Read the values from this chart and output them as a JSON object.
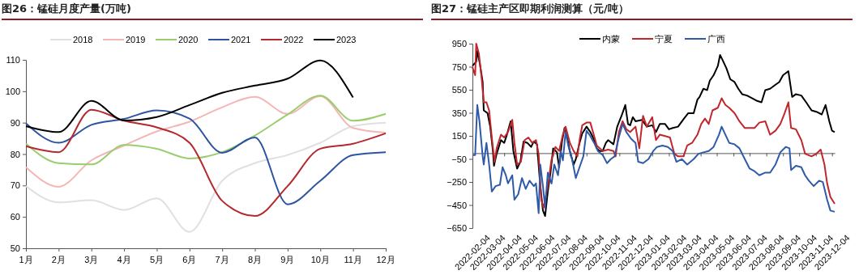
{
  "chart_data": [
    {
      "type": "line",
      "title": "图26：锰硅月度产量(万吨)",
      "categories": [
        "1月",
        "2月",
        "3月",
        "4月",
        "5月",
        "6月",
        "7月",
        "8月",
        "9月",
        "10月",
        "11月",
        "12月"
      ],
      "ylim": [
        50,
        110
      ],
      "yticks": [
        50,
        60,
        70,
        80,
        90,
        100,
        110
      ],
      "legend": "top",
      "series": [
        {
          "name": "2018",
          "color": "#e0e0e0",
          "values": [
            69.8,
            64.6,
            65.3,
            62.2,
            65.9,
            55.2,
            71.5,
            77.1,
            79.7,
            83.6,
            88.9,
            90.0
          ]
        },
        {
          "name": "2019",
          "color": "#f4b6b6",
          "values": [
            75.8,
            69.6,
            78.0,
            82.7,
            87.2,
            90.3,
            94.9,
            98.2,
            92.8,
            98.4,
            88.3,
            86.8
          ]
        },
        {
          "name": "2020",
          "color": "#9acd6e",
          "values": [
            83.3,
            77.1,
            76.7,
            82.9,
            81.7,
            78.6,
            80.6,
            85.9,
            92.6,
            98.6,
            90.6,
            92.8
          ]
        },
        {
          "name": "2021",
          "color": "#2e54a0",
          "values": [
            89.8,
            83.6,
            89.3,
            91.2,
            93.9,
            91.3,
            80.4,
            85.3,
            64.0,
            71.5,
            79.7,
            80.6
          ]
        },
        {
          "name": "2022",
          "color": "#b5282e",
          "values": [
            82.5,
            80.6,
            94.1,
            90.6,
            88.5,
            83.6,
            65.1,
            60.3,
            69.8,
            81.7,
            83.3,
            86.6
          ]
        },
        {
          "name": "2023",
          "color": "#000000",
          "values": [
            88.9,
            87.0,
            96.9,
            90.7,
            91.8,
            95.6,
            99.5,
            101.8,
            104.0,
            109.8,
            98.0,
            null
          ]
        }
      ]
    },
    {
      "type": "line",
      "title": "图27：锰硅主产区即期利润测算（元/吨）",
      "xlim": [
        "2022-02-04",
        "2023-12-09"
      ],
      "xticks": [
        "2022-02-04",
        "2022-03-04",
        "2022-04-04",
        "2022-05-04",
        "2022-06-04",
        "2022-07-04",
        "2022-08-04",
        "2022-09-04",
        "2022-10-04",
        "2022-11-04",
        "2022-12-04",
        "2023-01-04",
        "2023-02-04",
        "2023-03-04",
        "2023-04-04",
        "2023-05-04",
        "2023-06-04",
        "2023-07-04",
        "2023-08-04",
        "2023-09-04",
        "2023-10-04",
        "2023-11-04",
        "2023-12-04"
      ],
      "ylim": [
        -650,
        950
      ],
      "yticks": [
        -650,
        -450,
        -250,
        -50,
        150,
        350,
        550,
        750,
        950
      ],
      "legend": "top right",
      "series": [
        {
          "name": "内蒙",
          "color": "#000000",
          "x": [
            "2022-02-04",
            "2022-02-11",
            "2022-02-13",
            "2022-02-18",
            "2022-02-23",
            "2022-02-25",
            "2022-03-04",
            "2022-03-09",
            "2022-03-14",
            "2022-03-16",
            "2022-03-21",
            "2022-03-29",
            "2022-04-04",
            "2022-04-09",
            "2022-04-16",
            "2022-04-21",
            "2022-04-28",
            "2022-05-04",
            "2022-05-10",
            "2022-05-17",
            "2022-05-24",
            "2022-05-29",
            "2022-06-04",
            "2022-06-10",
            "2022-06-15",
            "2022-06-19",
            "2022-06-24",
            "2022-06-29",
            "2022-07-04",
            "2022-07-11",
            "2022-07-15",
            "2022-07-20",
            "2022-07-25",
            "2022-07-30",
            "2022-08-04",
            "2022-08-11",
            "2022-08-15",
            "2022-08-22",
            "2022-08-27",
            "2022-09-04",
            "2022-09-11",
            "2022-09-16",
            "2022-09-23",
            "2022-09-28",
            "2022-10-04",
            "2022-10-10",
            "2022-10-14",
            "2022-10-24",
            "2022-10-31",
            "2022-11-08",
            "2022-11-15",
            "2022-11-20",
            "2022-11-24",
            "2022-11-29",
            "2022-12-04",
            "2022-12-16",
            "2022-12-25",
            "2023-01-04",
            "2023-01-11",
            "2023-01-18",
            "2023-01-28",
            "2023-02-04",
            "2023-02-11",
            "2023-02-21",
            "2023-03-04",
            "2023-03-12",
            "2023-03-22",
            "2023-03-29",
            "2023-04-02",
            "2023-04-09",
            "2023-04-16",
            "2023-04-21",
            "2023-04-28",
            "2023-05-06",
            "2023-05-10",
            "2023-05-15",
            "2023-05-22",
            "2023-05-29",
            "2023-06-06",
            "2023-06-13",
            "2023-06-20",
            "2023-06-29",
            "2023-07-09",
            "2023-07-18",
            "2023-07-26",
            "2023-08-02",
            "2023-08-11",
            "2023-08-21",
            "2023-08-28",
            "2023-09-04",
            "2023-09-14",
            "2023-09-21",
            "2023-09-28",
            "2023-10-08",
            "2023-10-17",
            "2023-10-27",
            "2023-11-05",
            "2023-11-15",
            "2023-11-22",
            "2023-11-29",
            "2023-12-04",
            "2023-12-09"
          ],
          "values": [
            758,
            793,
            887,
            770,
            617,
            371,
            347,
            230,
            19,
            -110,
            -5,
            113,
            89,
            160,
            277,
            19,
            -134,
            -75,
            101,
            89,
            54,
            101,
            77,
            -286,
            -498,
            -545,
            -333,
            -169,
            42,
            7,
            -122,
            89,
            218,
            136,
            19,
            -99,
            -52,
            89,
            171,
            230,
            183,
            136,
            42,
            19,
            19,
            89,
            113,
            77,
            230,
            324,
            418,
            253,
            242,
            312,
            277,
            289,
            230,
            242,
            183,
            253,
            253,
            207,
            218,
            230,
            300,
            347,
            347,
            465,
            488,
            559,
            547,
            629,
            676,
            758,
            852,
            805,
            735,
            641,
            617,
            559,
            512,
            500,
            476,
            453,
            441,
            547,
            559,
            594,
            617,
            676,
            711,
            488,
            512,
            500,
            441,
            371,
            359,
            336,
            418,
            277,
            195,
            183
          ]
        },
        {
          "name": "宁夏",
          "color": "#c0272d",
          "x": [
            "2022-02-04",
            "2022-02-09",
            "2022-02-11",
            "2022-02-16",
            "2022-02-21",
            "2022-02-25",
            "2022-03-02",
            "2022-03-07",
            "2022-03-12",
            "2022-03-17",
            "2022-03-21",
            "2022-03-29",
            "2022-04-04",
            "2022-04-11",
            "2022-04-19",
            "2022-04-23",
            "2022-04-28",
            "2022-05-05",
            "2022-05-12",
            "2022-05-19",
            "2022-05-26",
            "2022-06-02",
            "2022-06-07",
            "2022-06-12",
            "2022-06-16",
            "2022-06-24",
            "2022-07-01",
            "2022-07-08",
            "2022-07-15",
            "2022-07-22",
            "2022-07-27",
            "2022-08-04",
            "2022-08-11",
            "2022-08-18",
            "2022-08-22",
            "2022-08-27",
            "2022-09-04",
            "2022-09-11",
            "2022-09-16",
            "2022-09-23",
            "2022-10-04",
            "2022-10-14",
            "2022-10-24",
            "2022-10-28",
            "2022-11-03",
            "2022-11-10",
            "2022-11-17",
            "2022-11-24",
            "2022-12-04",
            "2022-12-11",
            "2022-12-18",
            "2022-12-25",
            "2023-01-04",
            "2023-01-11",
            "2023-01-18",
            "2023-01-28",
            "2023-02-06",
            "2023-02-14",
            "2023-02-21",
            "2023-03-03",
            "2023-03-10",
            "2023-03-19",
            "2023-03-29",
            "2023-04-05",
            "2023-04-12",
            "2023-04-19",
            "2023-04-26",
            "2023-05-06",
            "2023-05-13",
            "2023-05-20",
            "2023-05-27",
            "2023-06-06",
            "2023-06-15",
            "2023-06-25",
            "2023-07-04",
            "2023-07-13",
            "2023-07-22",
            "2023-08-02",
            "2023-08-11",
            "2023-08-21",
            "2023-08-30",
            "2023-09-07",
            "2023-09-14",
            "2023-09-19",
            "2023-09-28",
            "2023-10-08",
            "2023-10-15",
            "2023-10-27",
            "2023-11-05",
            "2023-11-13",
            "2023-11-20",
            "2023-11-25",
            "2023-12-01",
            "2023-12-09"
          ],
          "values": [
            746,
            676,
            950,
            864,
            652,
            441,
            441,
            371,
            136,
            -75,
            42,
            160,
            136,
            183,
            289,
            89,
            -99,
            -75,
            113,
            136,
            89,
            113,
            -5,
            -404,
            -474,
            -286,
            -52,
            54,
            19,
            160,
            230,
            89,
            19,
            -28,
            113,
            242,
            265,
            265,
            183,
            66,
            19,
            31,
            19,
            -28,
            183,
            277,
            207,
            183,
            230,
            42,
            324,
            230,
            312,
            113,
            160,
            148,
            136,
            -5,
            -28,
            -28,
            66,
            89,
            160,
            253,
            300,
            253,
            371,
            394,
            476,
            418,
            394,
            347,
            277,
            218,
            218,
            218,
            265,
            277,
            160,
            195,
            253,
            347,
            441,
            218,
            207,
            113,
            -5,
            -28,
            -5,
            31,
            -99,
            -263,
            -380,
            -439
          ]
        },
        {
          "name": "广西",
          "color": "#2e5aa8",
          "x": [
            "2022-02-04",
            "2022-02-09",
            "2022-02-13",
            "2022-02-17",
            "2022-02-23",
            "2022-02-25",
            "2022-03-02",
            "2022-03-07",
            "2022-03-12",
            "2022-03-19",
            "2022-03-27",
            "2022-04-01",
            "2022-04-07",
            "2022-04-11",
            "2022-04-19",
            "2022-04-23",
            "2022-04-30",
            "2022-05-07",
            "2022-05-14",
            "2022-05-21",
            "2022-05-29",
            "2022-06-02",
            "2022-06-07",
            "2022-06-10",
            "2022-06-15",
            "2022-06-19",
            "2022-06-24",
            "2022-07-01",
            "2022-07-06",
            "2022-07-13",
            "2022-07-18",
            "2022-07-22",
            "2022-07-27",
            "2022-08-01",
            "2022-08-08",
            "2022-08-15",
            "2022-08-22",
            "2022-08-29",
            "2022-09-04",
            "2022-09-11",
            "2022-09-18",
            "2022-09-25",
            "2022-10-04",
            "2022-10-12",
            "2022-10-19",
            "2022-10-26",
            "2022-11-03",
            "2022-11-10",
            "2022-11-17",
            "2022-11-26",
            "2022-12-04",
            "2022-12-09",
            "2022-12-18",
            "2022-12-28",
            "2023-01-06",
            "2023-01-13",
            "2023-01-23",
            "2023-02-02",
            "2023-02-11",
            "2023-02-18",
            "2023-02-28",
            "2023-03-10",
            "2023-03-22",
            "2023-03-31",
            "2023-04-09",
            "2023-04-19",
            "2023-04-28",
            "2023-05-08",
            "2023-05-13",
            "2023-05-20",
            "2023-05-27",
            "2023-06-06",
            "2023-06-15",
            "2023-06-25",
            "2023-07-04",
            "2023-07-13",
            "2023-07-22",
            "2023-08-02",
            "2023-08-11",
            "2023-08-21",
            "2023-08-30",
            "2023-09-09",
            "2023-09-16",
            "2023-09-19",
            "2023-09-28",
            "2023-10-08",
            "2023-10-15",
            "2023-10-22",
            "2023-10-31",
            "2023-11-10",
            "2023-11-17",
            "2023-11-25",
            "2023-12-01",
            "2023-12-09"
          ],
          "values": [
            -16,
            -16,
            418,
            277,
            -28,
            -99,
            89,
            -99,
            -333,
            -286,
            -275,
            -122,
            -192,
            -263,
            -192,
            -404,
            -357,
            -216,
            -310,
            -239,
            -286,
            -263,
            -521,
            -99,
            -286,
            -474,
            -169,
            -263,
            -99,
            -192,
            19,
            -63,
            183,
            66,
            -52,
            -216,
            -122,
            -28,
            195,
            148,
            89,
            19,
            -16,
            -87,
            -52,
            -28,
            136,
            253,
            183,
            124,
            89,
            -75,
            -87,
            -52,
            19,
            54,
            66,
            54,
            19,
            -75,
            -52,
            -99,
            -52,
            -5,
            7,
            19,
            54,
            160,
            230,
            160,
            89,
            77,
            42,
            -52,
            -134,
            -157,
            -192,
            -169,
            -169,
            -99,
            7,
            54,
            42,
            -146,
            -110,
            -122,
            -192,
            -239,
            -286,
            -239,
            -251,
            -404,
            -498,
            -509
          ]
        }
      ]
    }
  ]
}
